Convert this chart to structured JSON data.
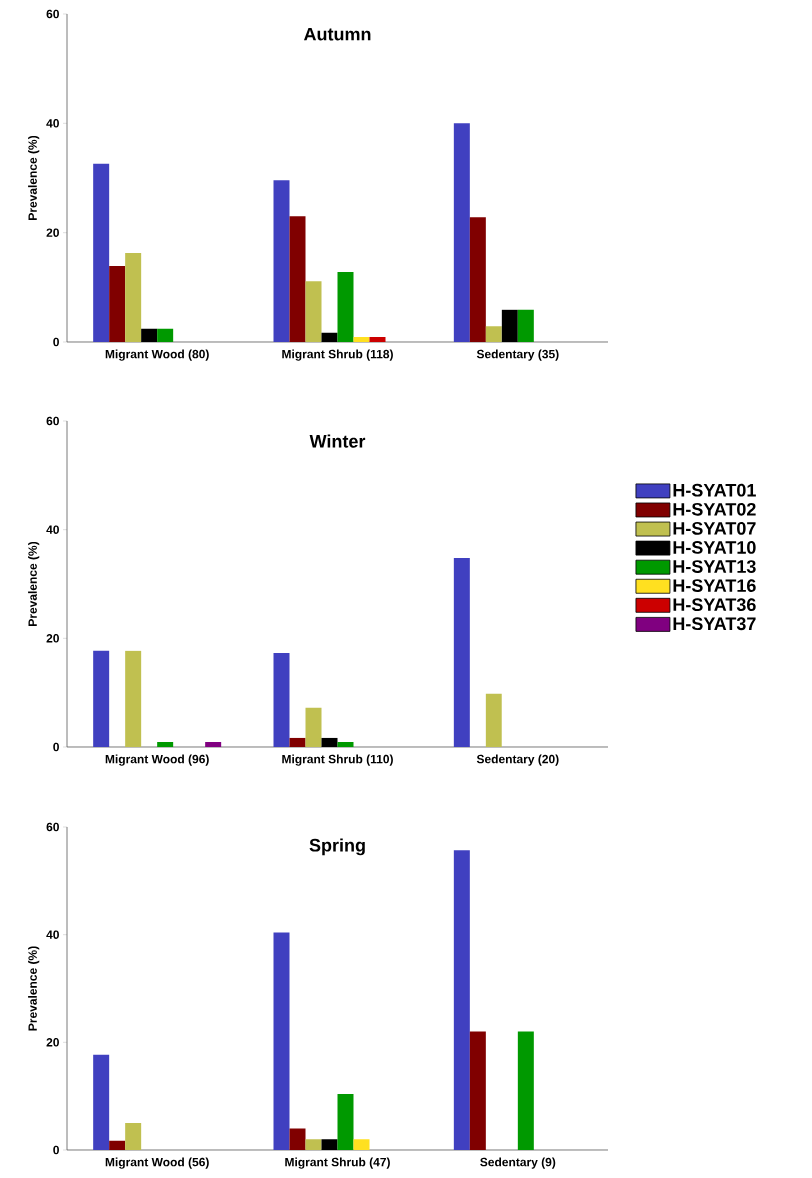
{
  "chart_data": [
    {
      "type": "bar",
      "title": "Autumn",
      "ylabel": "Prevalence (%)",
      "categories": [
        "Migrant Wood (80)",
        "Migrant Shrub (118)",
        "Sedentary (35)"
      ],
      "ylim": [
        0,
        60
      ],
      "yticks": [
        0,
        20,
        40,
        60
      ],
      "series": [
        {
          "color": "#4040c0",
          "values": [
            32.6,
            29.6,
            40.0
          ]
        },
        {
          "color": "#800000",
          "values": [
            13.9,
            23.0,
            22.8
          ]
        },
        {
          "color": "#c0c050",
          "values": [
            16.3,
            11.1,
            2.9
          ]
        },
        {
          "color": "#000000",
          "values": [
            2.4,
            1.7,
            5.9
          ]
        },
        {
          "color": "#009900",
          "values": [
            2.4,
            12.8,
            5.9
          ]
        },
        {
          "color": "#ffe020",
          "values": [
            0,
            0.9,
            0
          ]
        },
        {
          "color": "#cc0000",
          "values": [
            0,
            0.9,
            0
          ]
        },
        {
          "color": "#800080",
          "values": [
            0,
            0,
            0
          ]
        }
      ]
    },
    {
      "type": "bar",
      "title": "Winter",
      "ylabel": "Prevalence (%)",
      "categories": [
        "Migrant Wood (96)",
        "Migrant Shrub (110)",
        "Sedentary (20)"
      ],
      "ylim": [
        0,
        60
      ],
      "yticks": [
        0,
        20,
        40,
        60
      ],
      "legend": "right",
      "series": [
        {
          "name": "H-SYAT01",
          "color": "#4040c0",
          "values": [
            17.7,
            17.3,
            34.8
          ]
        },
        {
          "name": "H-SYAT02",
          "color": "#800000",
          "values": [
            0,
            1.7,
            0
          ]
        },
        {
          "name": "H-SYAT07",
          "color": "#c0c050",
          "values": [
            17.7,
            7.2,
            9.8
          ]
        },
        {
          "name": "H-SYAT10",
          "color": "#000000",
          "values": [
            0,
            1.7,
            0
          ]
        },
        {
          "name": "H-SYAT13",
          "color": "#009900",
          "values": [
            0.9,
            0.9,
            0
          ]
        },
        {
          "name": "H-SYAT16",
          "color": "#ffe020",
          "values": [
            0,
            0,
            0
          ]
        },
        {
          "name": "H-SYAT36",
          "color": "#cc0000",
          "values": [
            0,
            0,
            0
          ]
        },
        {
          "name": "H-SYAT37",
          "color": "#800080",
          "values": [
            0.9,
            0,
            0
          ]
        }
      ]
    },
    {
      "type": "bar",
      "title": "Spring",
      "ylabel": "Prevalence (%)",
      "categories": [
        "Migrant Wood (56)",
        "Migrant Shrub (47)",
        "Sedentary (9)"
      ],
      "ylim": [
        0,
        60
      ],
      "yticks": [
        0,
        20,
        40,
        60
      ],
      "series": [
        {
          "color": "#4040c0",
          "values": [
            17.7,
            40.4,
            55.7
          ]
        },
        {
          "color": "#800000",
          "values": [
            1.7,
            4.0,
            22.0
          ]
        },
        {
          "color": "#c0c050",
          "values": [
            5.0,
            2.0,
            0
          ]
        },
        {
          "color": "#000000",
          "values": [
            0,
            2.0,
            0
          ]
        },
        {
          "color": "#009900",
          "values": [
            0,
            10.4,
            22.0
          ]
        },
        {
          "color": "#ffe020",
          "values": [
            0,
            2.0,
            0
          ]
        },
        {
          "color": "#cc0000",
          "values": [
            0,
            0,
            0
          ]
        },
        {
          "color": "#800080",
          "values": [
            0,
            0,
            0
          ]
        }
      ]
    }
  ]
}
